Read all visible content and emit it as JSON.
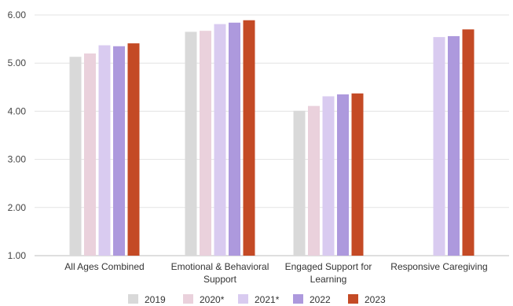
{
  "chart_data": {
    "type": "bar",
    "categories": [
      [
        "All Ages Combined"
      ],
      [
        "Emotional & Behavioral",
        "Support"
      ],
      [
        "Engaged Support for",
        "Learning"
      ],
      [
        "Responsive Caregiving"
      ]
    ],
    "series": [
      {
        "name": "2019",
        "color": "#d9d9d9",
        "values": [
          5.13,
          5.65,
          4.01,
          null
        ]
      },
      {
        "name": "2020*",
        "color": "#ead1dc",
        "values": [
          5.2,
          5.67,
          4.11,
          null
        ]
      },
      {
        "name": "2021*",
        "color": "#d9cbf0",
        "values": [
          5.37,
          5.81,
          4.31,
          5.54
        ]
      },
      {
        "name": "2022",
        "color": "#ad99dd",
        "values": [
          5.35,
          5.84,
          4.35,
          5.56
        ]
      },
      {
        "name": "2023",
        "color": "#c44a25",
        "values": [
          5.41,
          5.89,
          4.37,
          5.7
        ]
      }
    ],
    "ylim": [
      1,
      6
    ],
    "yticks": [
      "1.00",
      "2.00",
      "3.00",
      "4.00",
      "5.00",
      "6.00"
    ],
    "grid": true,
    "legend": "bottom"
  }
}
